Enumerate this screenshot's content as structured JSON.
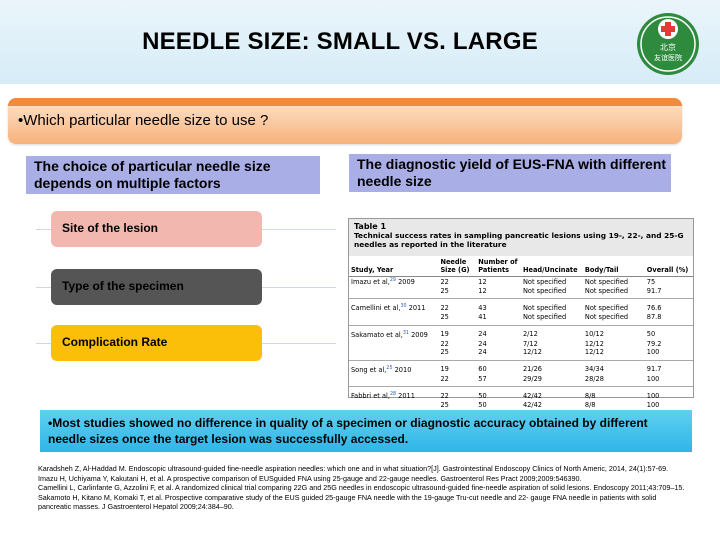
{
  "header": {
    "title": "NEEDLE SIZE: SMALL VS. LARGE",
    "logo_text_line1": "北京",
    "logo_text_line2": "友谊医院"
  },
  "question": "•Which particular needle size to use ?",
  "left_heading": "The choice of particular needle size depends on multiple factors",
  "right_heading": "The diagnostic yield of EUS-FNA with different needle size",
  "factors": [
    "Site of the lesion",
    "Type of the specimen",
    "Complication Rate"
  ],
  "table": {
    "number": "Table 1",
    "caption": "Technical success rates in sampling pancreatic lesions using 19-, 22-, and 25-G needles as reported in the literature",
    "headers": [
      "Study, Year",
      "Needle Size (G)",
      "Number of Patients",
      "Head/Uncinate",
      "Body/Tail",
      "Overall (%)"
    ],
    "rows": [
      {
        "study": "Imazu et al,",
        "ref": "29",
        "year": "2009",
        "needle": "22",
        "patients": "12",
        "head": "Not specified",
        "body": "Not specified",
        "overall": "75"
      },
      {
        "study": "",
        "ref": "",
        "year": "",
        "needle": "25",
        "patients": "12",
        "head": "Not specified",
        "body": "Not specified",
        "overall": "91.7"
      },
      {
        "study": "Camellini et al,",
        "ref": "30",
        "year": "2011",
        "needle": "22",
        "patients": "43",
        "head": "Not specified",
        "body": "Not specified",
        "overall": "76.6"
      },
      {
        "study": "",
        "ref": "",
        "year": "",
        "needle": "25",
        "patients": "41",
        "head": "Not specified",
        "body": "Not specified",
        "overall": "87.8"
      },
      {
        "study": "Sakamato et al,",
        "ref": "31",
        "year": "2009",
        "needle": "19",
        "patients": "24",
        "head": "2/12",
        "body": "10/12",
        "overall": "50"
      },
      {
        "study": "",
        "ref": "",
        "year": "",
        "needle": "22",
        "patients": "24",
        "head": "7/12",
        "body": "12/12",
        "overall": "79.2"
      },
      {
        "study": "",
        "ref": "",
        "year": "",
        "needle": "25",
        "patients": "24",
        "head": "12/12",
        "body": "12/12",
        "overall": "100"
      },
      {
        "study": "Song et al,",
        "ref": "25",
        "year": "2010",
        "needle": "19",
        "patients": "60",
        "head": "21/26",
        "body": "34/34",
        "overall": "91.7"
      },
      {
        "study": "",
        "ref": "",
        "year": "",
        "needle": "22",
        "patients": "57",
        "head": "29/29",
        "body": "28/28",
        "overall": "100"
      },
      {
        "study": "Fabbri et al,",
        "ref": "28",
        "year": "2011",
        "needle": "22",
        "patients": "50",
        "head": "42/42",
        "body": "8/8",
        "overall": "100"
      },
      {
        "study": "",
        "ref": "",
        "year": "",
        "needle": "25",
        "patients": "50",
        "head": "42/42",
        "body": "8/8",
        "overall": "100"
      }
    ]
  },
  "summary": "•Most studies showed no difference in quality of a specimen or diagnostic accuracy obtained by different needle sizes once the target lesion was successfully accessed.",
  "references": [
    "Karadsheh Z, Al-Haddad M. Endoscopic ultrasound-guided fine-needle aspiration needles: which one and in what situation?[J]. Gastrointestinal Endoscopy Clinics of North Americ, 2014, 24(1):57-69.",
    "Imazu H, Uchiyama Y, Kakutani H, et al. A prospective comparison of EUSguided FNA using 25-gauge and 22-gauge needles. Gastroenterol Res Pract 2009;2009:546390.",
    "Camellini L, Carlinfante G, Azzolini F, et al. A randomized clinical trial comparing 22G and 25G needles in endoscopic ultrasound-guided fine-needle aspiration of solid lesions. Endoscopy 2011;43:709–15.",
    "Sakamoto H, Kitano M, Komaki T, et al. Prospective comparative study of the EUS guided 25-gauge FNA needle with the 19-gauge Tru-cut needle and 22- gauge FNA needle in patients with solid pancreatic masses. J Gastroenterol Hepatol 2009;24:384–90."
  ],
  "colors": {
    "header_band": "#d6ecf7",
    "question_bar": "#f7b27a",
    "heading_box": "#aaaee6",
    "factor_1": "#f2b8b0",
    "factor_2": "#555555",
    "factor_3": "#fbbf0a",
    "summary_bar": "#2eb6e8",
    "logo_green": "#2e8b3e",
    "logo_cross": "#e53935"
  }
}
